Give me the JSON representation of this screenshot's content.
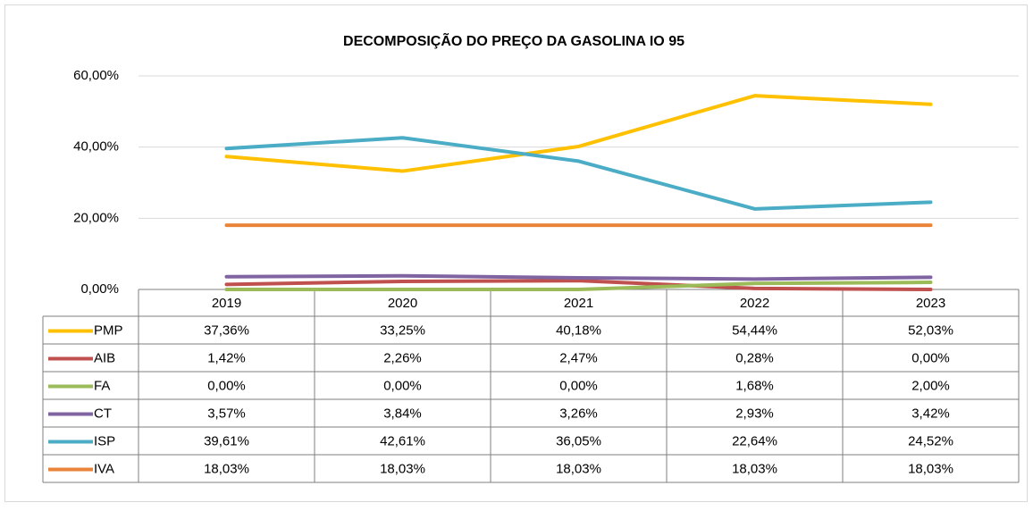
{
  "chart_data": {
    "type": "line",
    "title": "DECOMPOSIÇÃO DO PREÇO DA GASOLINA IO 95",
    "categories": [
      "2019",
      "2020",
      "2021",
      "2022",
      "2023"
    ],
    "series": [
      {
        "name": "PMP",
        "color": "#ffc000",
        "values": [
          37.36,
          33.25,
          40.18,
          54.44,
          52.03
        ],
        "value_labels": [
          "37,36%",
          "33,25%",
          "40,18%",
          "54,44%",
          "52,03%"
        ]
      },
      {
        "name": "AIB",
        "color": "#c0504d",
        "values": [
          1.42,
          2.26,
          2.47,
          0.28,
          0.0
        ],
        "value_labels": [
          "1,42%",
          "2,26%",
          "2,47%",
          "0,28%",
          "0,00%"
        ]
      },
      {
        "name": "FA",
        "color": "#9bbb59",
        "values": [
          0.0,
          0.0,
          0.0,
          1.68,
          2.0
        ],
        "value_labels": [
          "0,00%",
          "0,00%",
          "0,00%",
          "1,68%",
          "2,00%"
        ]
      },
      {
        "name": "CT",
        "color": "#8064a2",
        "values": [
          3.57,
          3.84,
          3.26,
          2.93,
          3.42
        ],
        "value_labels": [
          "3,57%",
          "3,84%",
          "3,26%",
          "2,93%",
          "3,42%"
        ]
      },
      {
        "name": "ISP",
        "color": "#4bacc6",
        "values": [
          39.61,
          42.61,
          36.05,
          22.64,
          24.52
        ],
        "value_labels": [
          "39,61%",
          "42,61%",
          "36,05%",
          "22,64%",
          "24,52%"
        ]
      },
      {
        "name": "IVA",
        "color": "#e9843a",
        "values": [
          18.03,
          18.03,
          18.03,
          18.03,
          18.03
        ],
        "value_labels": [
          "18,03%",
          "18,03%",
          "18,03%",
          "18,03%",
          "18,03%"
        ]
      }
    ],
    "ylim": [
      0,
      60
    ],
    "yticks": [
      {
        "value": 0,
        "label": "0,00%"
      },
      {
        "value": 20,
        "label": "20,00%"
      },
      {
        "value": 40,
        "label": "40,00%"
      },
      {
        "value": 60,
        "label": "60,00%"
      }
    ],
    "grid": true
  }
}
